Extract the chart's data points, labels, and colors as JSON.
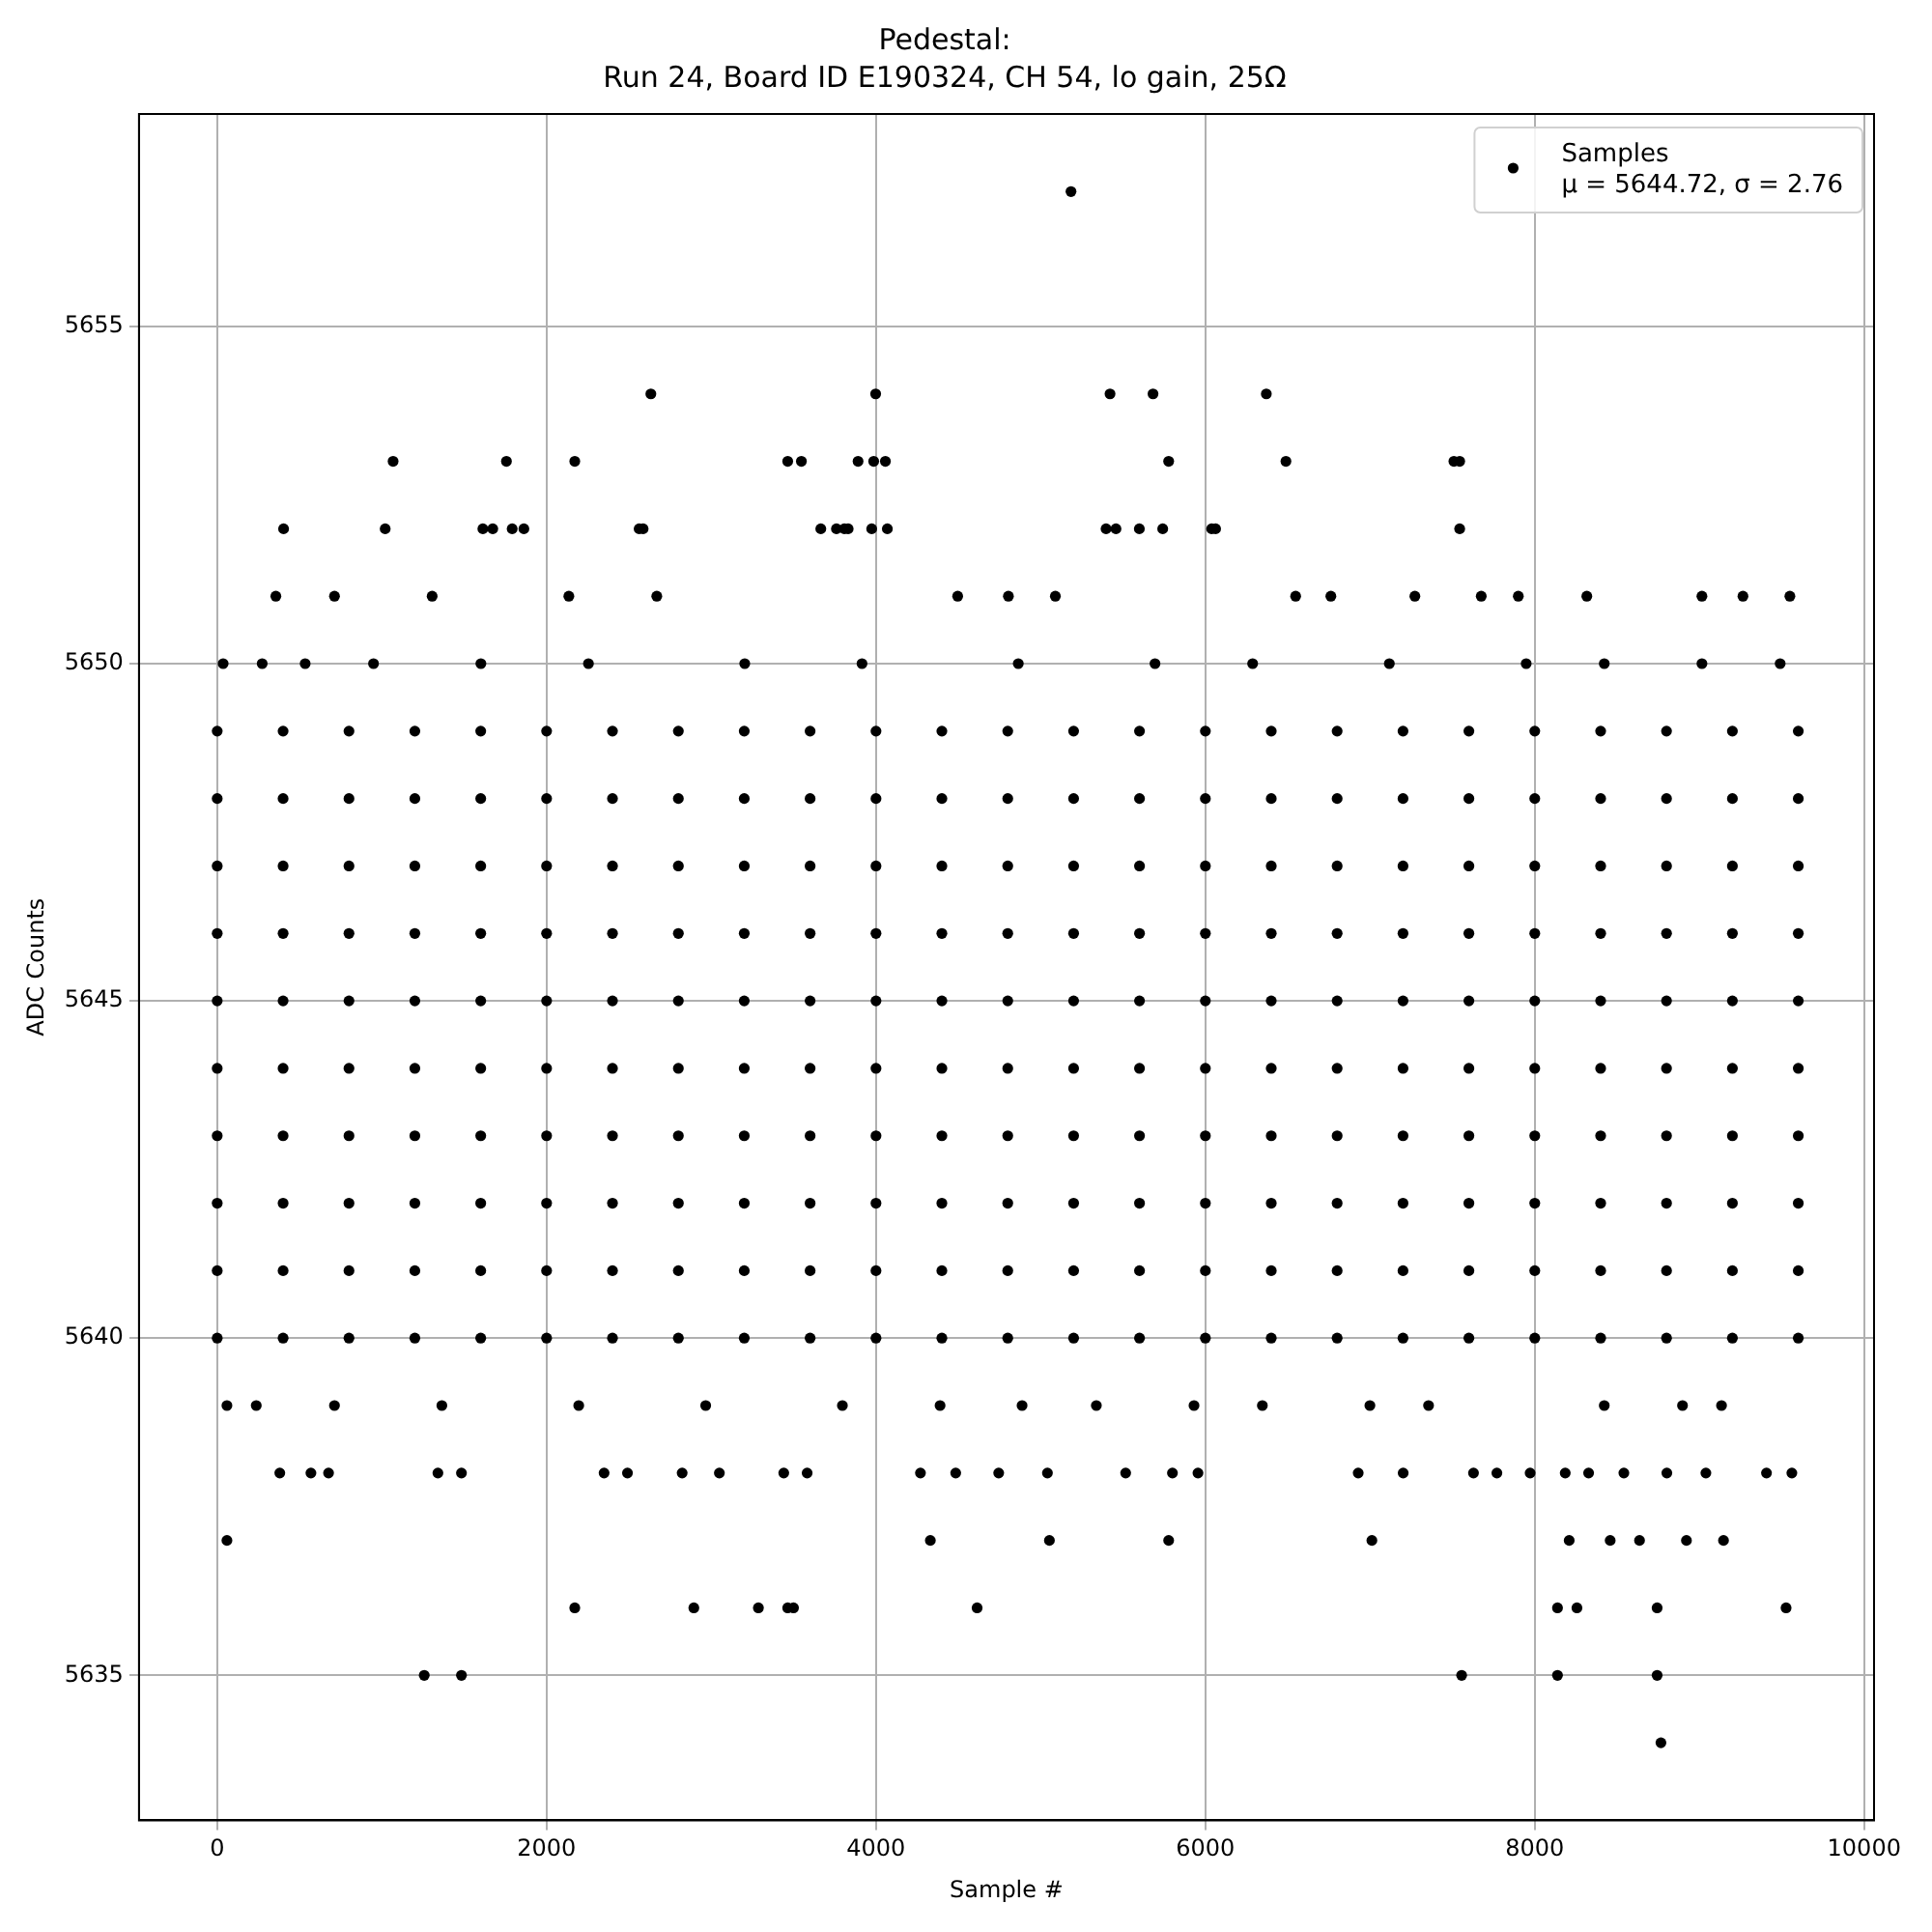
{
  "chart_data": {
    "type": "scatter",
    "title": "Pedestal:\nRun 24, Board ID E190324, CH 54, lo gain, 25Ω",
    "xlabel": "Sample #",
    "ylabel": "ADC Counts",
    "xlim": [
      -475,
      10060
    ],
    "xticks": [
      0,
      2000,
      4000,
      6000,
      8000,
      10000
    ],
    "ylim": [
      5632.85,
      5658.15
    ],
    "yticks": [
      5635,
      5640,
      5645,
      5650,
      5655
    ],
    "grid": true,
    "legend": "top right",
    "marker": "circle",
    "annotations": [
      "μ = 5644.72, σ = 2.76"
    ],
    "series": [
      {
        "name": "Samples",
        "color": "#000000",
        "x": [
          5184,
          2633,
          3998,
          5421,
          5682,
          6370,
          1068,
          1756,
          2171,
          3464,
          3547,
          3891,
          3986,
          4057,
          5777,
          6489,
          7509,
          7544,
          403,
          1020,
          1613,
          1673,
          1791,
          1862,
          2562,
          2586,
          3665,
          3760,
          3808,
          3831,
          3974,
          4069,
          5397,
          5457,
          5599,
          5741,
          6038,
          6062,
          7544,
          2669,
          356,
          712,
          1305,
          2135,
          4496,
          4804,
          5089,
          6548,
          6762,
          7272,
          7675,
          7900,
          8316,
          9015,
          9264,
          9549,
          36,
          273,
          534,
          949,
          1601,
          2254,
          3203,
          3915,
          4864,
          5694,
          6287,
          7117,
          7948,
          8422,
          9015,
          9490,
          0,
          400,
          800,
          1200,
          1600,
          2000,
          2400,
          2800,
          3200,
          3600,
          4000,
          4400,
          4800,
          5200,
          5600,
          6000,
          6400,
          6800,
          7200,
          7600,
          8000,
          8400,
          8800,
          9200,
          9600,
          0,
          400,
          800,
          1200,
          1600,
          2000,
          2400,
          2800,
          3200,
          3600,
          4000,
          4400,
          4800,
          5200,
          5600,
          6000,
          6400,
          6800,
          7200,
          7600,
          8000,
          8400,
          8800,
          9200,
          9600,
          0,
          400,
          800,
          1200,
          1600,
          2000,
          2400,
          2800,
          3200,
          3600,
          4000,
          4400,
          4800,
          5200,
          5600,
          6000,
          6400,
          6800,
          7200,
          7600,
          8000,
          8400,
          8800,
          9200,
          9600,
          0,
          400,
          800,
          1200,
          1600,
          2000,
          2400,
          2800,
          3200,
          3600,
          4000,
          4400,
          4800,
          5200,
          5600,
          6000,
          6400,
          6800,
          7200,
          7600,
          8000,
          8400,
          8800,
          9200,
          9600,
          0,
          400,
          800,
          1200,
          1600,
          2000,
          2400,
          2800,
          3200,
          3600,
          4000,
          4400,
          4800,
          5200,
          5600,
          6000,
          6400,
          6800,
          7200,
          7600,
          8000,
          8400,
          8800,
          9200,
          9600,
          0,
          400,
          800,
          1200,
          1600,
          2000,
          2400,
          2800,
          3200,
          3600,
          4000,
          4400,
          4800,
          5200,
          5600,
          6000,
          6400,
          6800,
          7200,
          7600,
          8000,
          8400,
          8800,
          9200,
          9600,
          0,
          400,
          800,
          1200,
          1600,
          2000,
          2400,
          2800,
          3200,
          3600,
          4000,
          4400,
          4800,
          5200,
          5600,
          6000,
          6400,
          6800,
          7200,
          7600,
          8000,
          8400,
          8800,
          9200,
          9600,
          0,
          400,
          800,
          1200,
          1600,
          2000,
          2400,
          2800,
          3200,
          3600,
          4000,
          4400,
          4800,
          5200,
          5600,
          6000,
          6400,
          6800,
          7200,
          7600,
          8000,
          8400,
          8800,
          9200,
          9600,
          0,
          400,
          800,
          1200,
          1600,
          2000,
          2400,
          2800,
          3200,
          3600,
          4000,
          4400,
          4800,
          5200,
          5600,
          6000,
          6400,
          6800,
          7200,
          7600,
          8000,
          8400,
          8800,
          9200,
          9600,
          0,
          400,
          800,
          1200,
          1600,
          2000,
          2400,
          2800,
          3200,
          3600,
          4000,
          4400,
          4800,
          5200,
          5600,
          6000,
          6400,
          6800,
          7200,
          7600,
          8000,
          8400,
          8800,
          9200,
          9600,
          59,
          237,
          712,
          1364,
          2195,
          2966,
          3796,
          4389,
          4887,
          5338,
          5931,
          6346,
          6999,
          7355,
          8422,
          8897,
          9134,
          380,
          569,
          676,
          1340,
          1483,
          2349,
          2491,
          2823,
          3049,
          3440,
          3582,
          4270,
          4484,
          4745,
          5041,
          5516,
          5800,
          5955,
          6928,
          7201,
          7628,
          7770,
          7972,
          8185,
          8327,
          8541,
          8802,
          9039,
          9407,
          9561,
          59,
          4330,
          5053,
          5777,
          7011,
          8209,
          8458,
          8636,
          8921,
          9146,
          2171,
          2894,
          3286,
          3464,
          3499,
          4614,
          8138,
          8256,
          8743,
          9526,
          1257,
          1483,
          7556,
          8138,
          8743,
          8766
        ],
        "values": [
          5657,
          5654,
          5654,
          5654,
          5654,
          5654,
          5653,
          5653,
          5653,
          5653,
          5653,
          5653,
          5653,
          5653,
          5653,
          5653,
          5653,
          5653,
          5652,
          5652,
          5652,
          5652,
          5652,
          5652,
          5652,
          5652,
          5652,
          5652,
          5652,
          5652,
          5652,
          5652,
          5652,
          5652,
          5652,
          5652,
          5652,
          5652,
          5652,
          5651,
          5651,
          5651,
          5651,
          5651,
          5651,
          5651,
          5651,
          5651,
          5651,
          5651,
          5651,
          5651,
          5651,
          5651,
          5651,
          5651,
          5650,
          5650,
          5650,
          5650,
          5650,
          5650,
          5650,
          5650,
          5650,
          5650,
          5650,
          5650,
          5650,
          5650,
          5650,
          5650,
          5649,
          5649,
          5649,
          5649,
          5649,
          5649,
          5649,
          5649,
          5649,
          5649,
          5649,
          5649,
          5649,
          5649,
          5649,
          5649,
          5649,
          5649,
          5649,
          5649,
          5649,
          5649,
          5649,
          5649,
          5649,
          5648,
          5648,
          5648,
          5648,
          5648,
          5648,
          5648,
          5648,
          5648,
          5648,
          5648,
          5648,
          5648,
          5648,
          5648,
          5648,
          5648,
          5648,
          5648,
          5648,
          5648,
          5648,
          5648,
          5648,
          5648,
          5647,
          5647,
          5647,
          5647,
          5647,
          5647,
          5647,
          5647,
          5647,
          5647,
          5647,
          5647,
          5647,
          5647,
          5647,
          5647,
          5647,
          5647,
          5647,
          5647,
          5647,
          5647,
          5647,
          5647,
          5647,
          5646,
          5646,
          5646,
          5646,
          5646,
          5646,
          5646,
          5646,
          5646,
          5646,
          5646,
          5646,
          5646,
          5646,
          5646,
          5646,
          5646,
          5646,
          5646,
          5646,
          5646,
          5646,
          5646,
          5646,
          5646,
          5645,
          5645,
          5645,
          5645,
          5645,
          5645,
          5645,
          5645,
          5645,
          5645,
          5645,
          5645,
          5645,
          5645,
          5645,
          5645,
          5645,
          5645,
          5645,
          5645,
          5645,
          5645,
          5645,
          5645,
          5645,
          5644,
          5644,
          5644,
          5644,
          5644,
          5644,
          5644,
          5644,
          5644,
          5644,
          5644,
          5644,
          5644,
          5644,
          5644,
          5644,
          5644,
          5644,
          5644,
          5644,
          5644,
          5644,
          5644,
          5644,
          5644,
          5643,
          5643,
          5643,
          5643,
          5643,
          5643,
          5643,
          5643,
          5643,
          5643,
          5643,
          5643,
          5643,
          5643,
          5643,
          5643,
          5643,
          5643,
          5643,
          5643,
          5643,
          5643,
          5643,
          5643,
          5643,
          5642,
          5642,
          5642,
          5642,
          5642,
          5642,
          5642,
          5642,
          5642,
          5642,
          5642,
          5642,
          5642,
          5642,
          5642,
          5642,
          5642,
          5642,
          5642,
          5642,
          5642,
          5642,
          5642,
          5642,
          5642,
          5641,
          5641,
          5641,
          5641,
          5641,
          5641,
          5641,
          5641,
          5641,
          5641,
          5641,
          5641,
          5641,
          5641,
          5641,
          5641,
          5641,
          5641,
          5641,
          5641,
          5641,
          5641,
          5641,
          5641,
          5641,
          5640,
          5640,
          5640,
          5640,
          5640,
          5640,
          5640,
          5640,
          5640,
          5640,
          5640,
          5640,
          5640,
          5640,
          5640,
          5640,
          5640,
          5640,
          5640,
          5640,
          5640,
          5640,
          5640,
          5640,
          5640,
          5639,
          5639,
          5639,
          5639,
          5639,
          5639,
          5639,
          5639,
          5639,
          5639,
          5639,
          5639,
          5639,
          5639,
          5639,
          5639,
          5639,
          5638,
          5638,
          5638,
          5638,
          5638,
          5638,
          5638,
          5638,
          5638,
          5638,
          5638,
          5638,
          5638,
          5638,
          5638,
          5638,
          5638,
          5638,
          5638,
          5638,
          5638,
          5638,
          5638,
          5638,
          5638,
          5638,
          5638,
          5638,
          5638,
          5638,
          5637,
          5637,
          5637,
          5637,
          5637,
          5637,
          5637,
          5637,
          5637,
          5637,
          5636,
          5636,
          5636,
          5636,
          5636,
          5636,
          5636,
          5636,
          5636,
          5636,
          5635,
          5635,
          5635,
          5635,
          5635,
          5634
        ]
      }
    ]
  }
}
